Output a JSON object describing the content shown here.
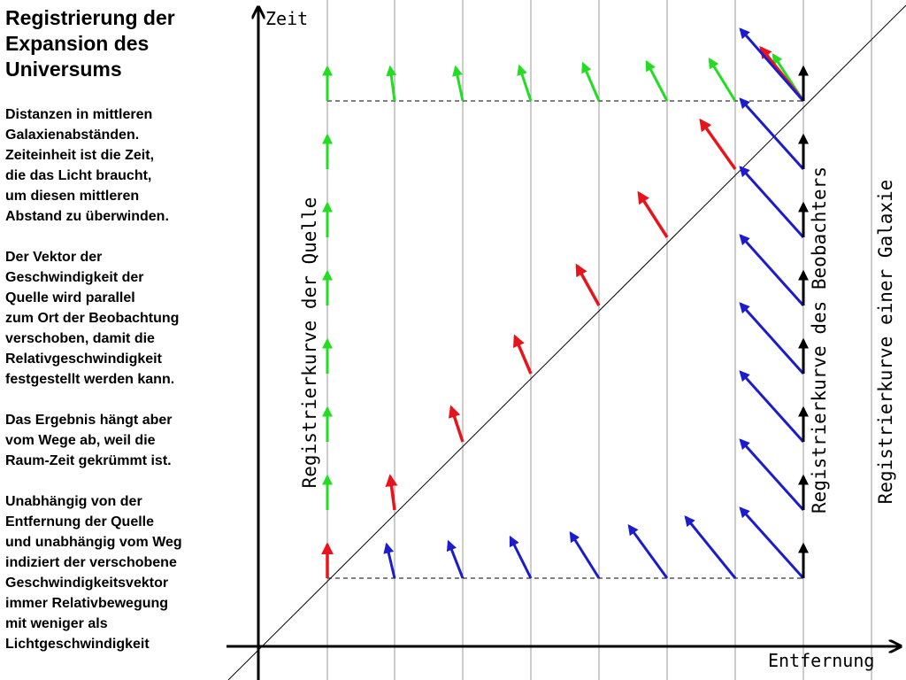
{
  "title": [
    "Registrierung der",
    "Expansion des",
    "Universums"
  ],
  "description": [
    [
      "Distanzen in mittleren",
      "Galaxienabständen.",
      "Zeiteinheit ist die Zeit,",
      "die das Licht braucht,",
      "um diesen mittleren",
      "Abstand zu überwinden."
    ],
    [
      "Der Vektor der",
      "Geschwindigkeit der",
      "Quelle wird parallel",
      "zum Ort der Beobachtung",
      "verschoben, damit die",
      "Relativgeschwindigkeit",
      "festgestellt werden kann."
    ],
    [
      "Das Ergebnis hängt aber",
      "vom Wege ab, weil die",
      "Raum-Zeit gekrümmt ist."
    ],
    [
      "Unabhängig von der",
      "Entfernung der Quelle",
      "und unabhängig vom Weg",
      "indiziert der verschobene",
      "Geschwindigkeitsvektor",
      "immer Relativbewegung",
      "mit weniger als",
      "Lichtgeschwindigkeit"
    ]
  ],
  "axes": {
    "y_label": "Zeit",
    "x_label": "Entfernung"
  },
  "curve_labels": {
    "source": "Registrierkurve der Quelle",
    "observer": "Registrierkurve des Beobachters",
    "galaxy": "Registrierkurve einer Galaxie"
  },
  "colors": {
    "red": "#e8141c",
    "green": "#22dd22",
    "blue": "#1c1ccc",
    "black": "#000000"
  }
}
